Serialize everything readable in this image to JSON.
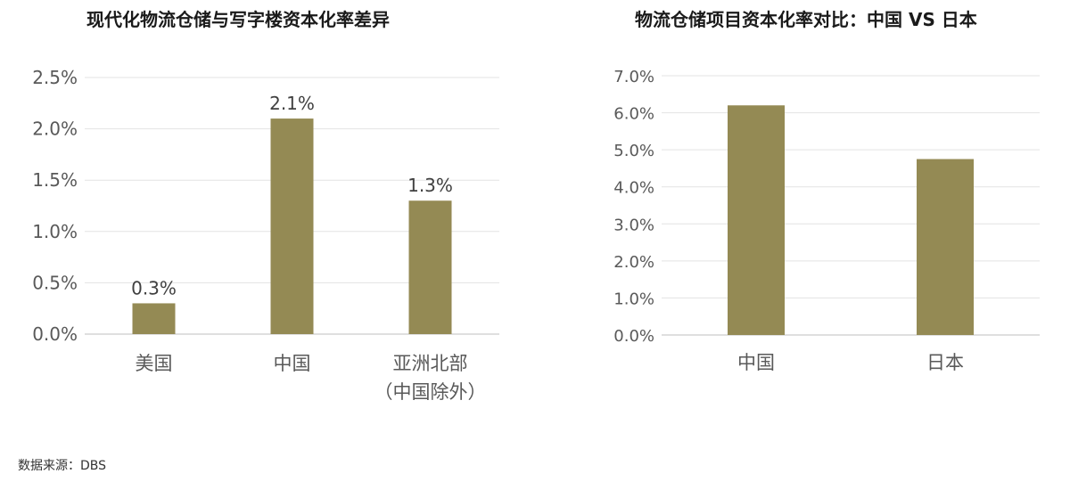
{
  "chart_data": [
    {
      "type": "bar",
      "title": "现代化物流仓储与写字楼资本化率差异",
      "categories": [
        [
          "美国"
        ],
        [
          "中国"
        ],
        [
          "亚洲北部",
          "（中国除外）"
        ]
      ],
      "values": [
        0.3,
        2.1,
        1.3
      ],
      "data_labels": [
        "0.3%",
        "2.1%",
        "1.3%"
      ],
      "yticks": [
        "0.0%",
        "0.5%",
        "1.0%",
        "1.5%",
        "2.0%",
        "2.5%"
      ],
      "ylim": [
        0,
        2.5
      ],
      "grid": true,
      "color": "#948A54"
    },
    {
      "type": "bar",
      "title": "物流仓储项目资本化率对比：中国 VS 日本",
      "categories": [
        [
          "中国"
        ],
        [
          "日本"
        ]
      ],
      "values": [
        6.2,
        4.75
      ],
      "yticks": [
        "0.0%",
        "1.0%",
        "2.0%",
        "3.0%",
        "4.0%",
        "5.0%",
        "6.0%",
        "7.0%"
      ],
      "ylim": [
        0,
        7
      ],
      "grid": true,
      "color": "#948A54"
    }
  ],
  "source": "数据来源：DBS"
}
